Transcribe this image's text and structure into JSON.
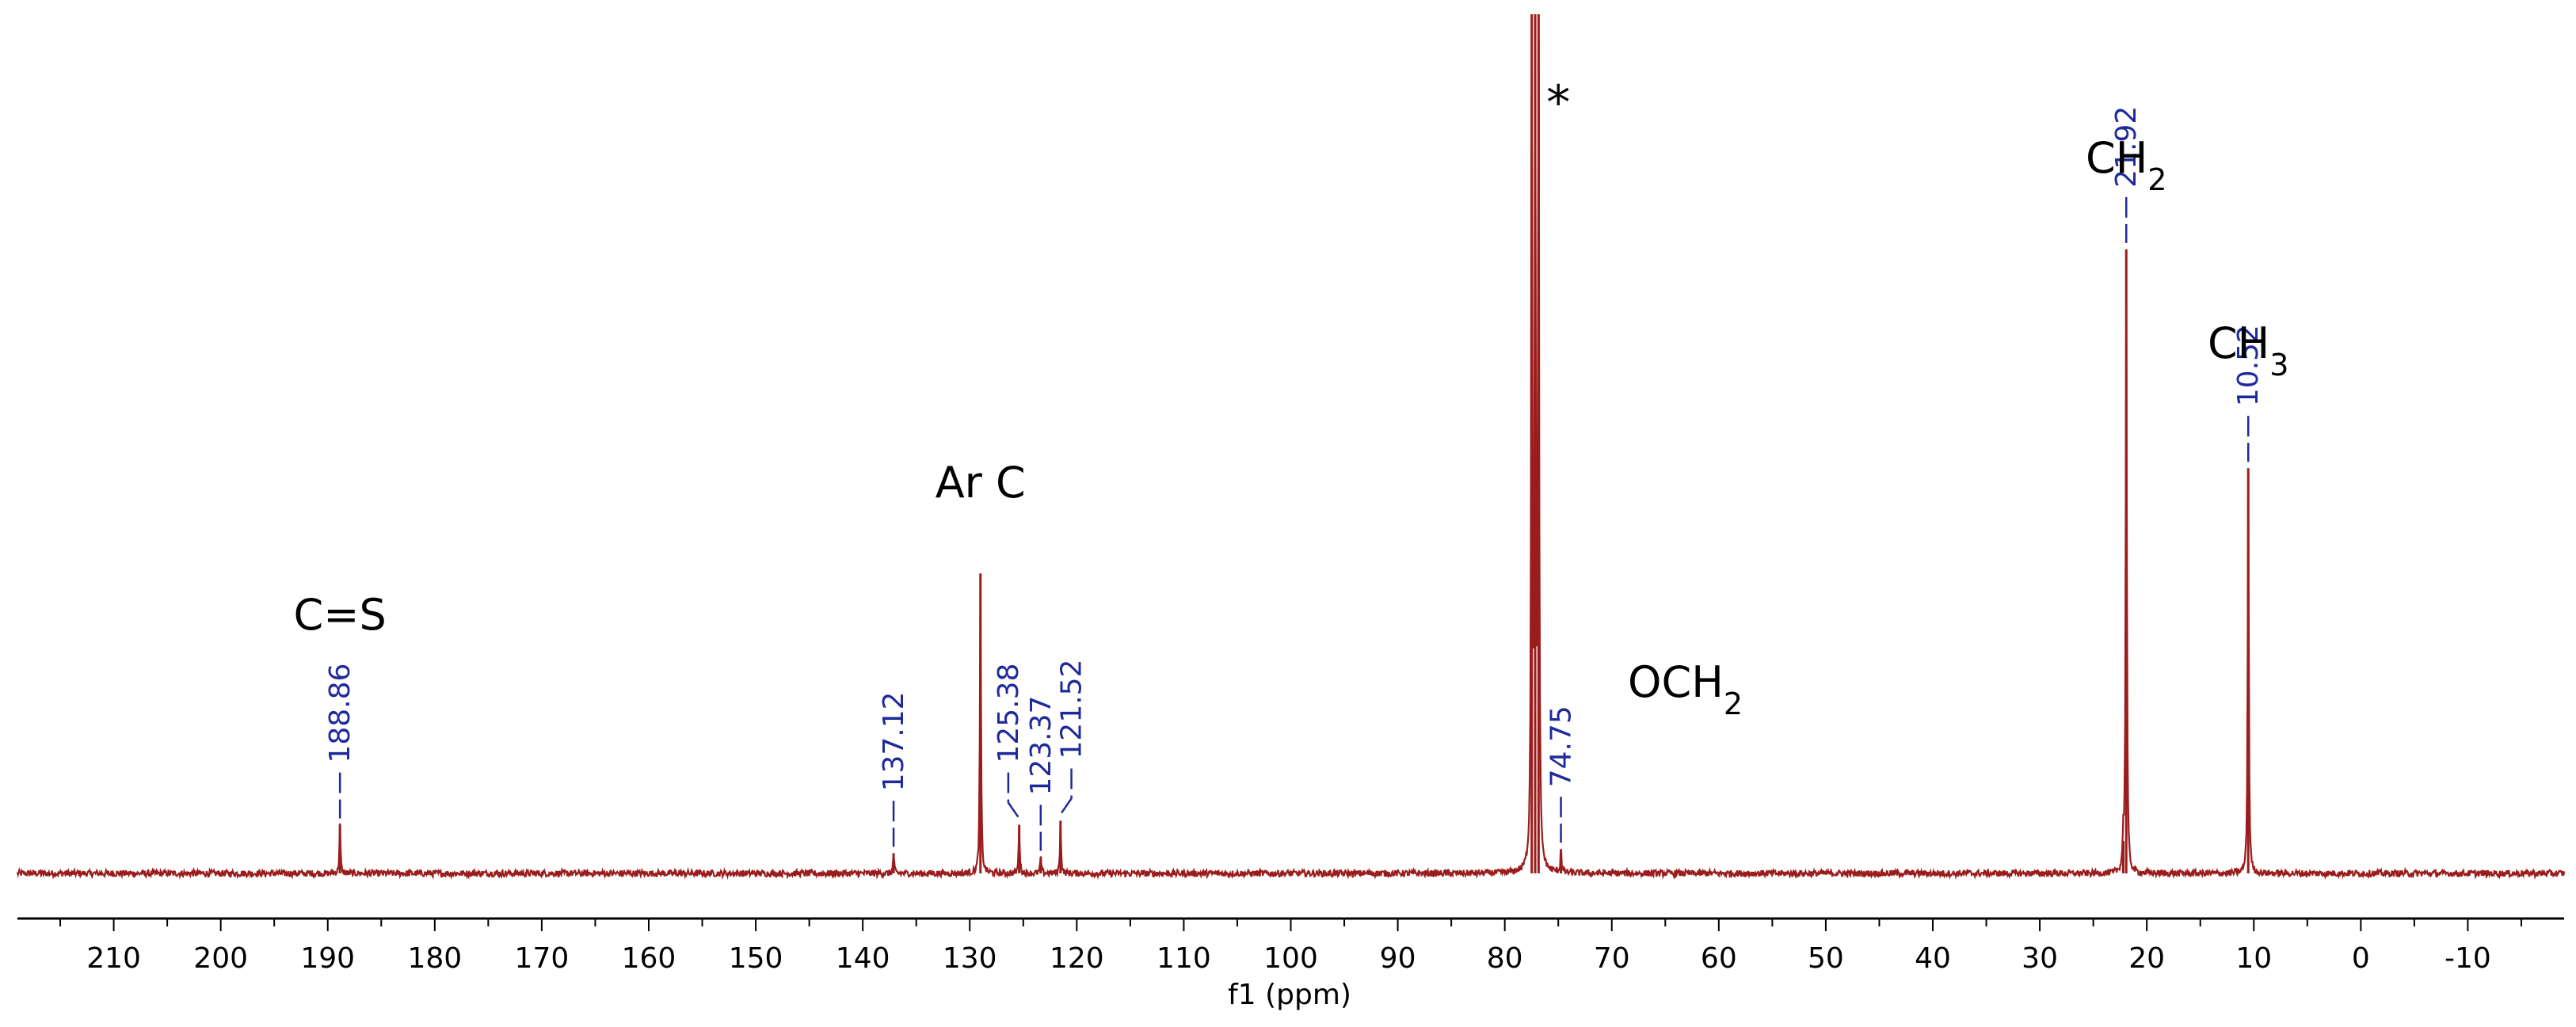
{
  "colors": {
    "spectrum": "#9b1c1c",
    "peak_label": "#1f2a9a",
    "axis": "#000000"
  },
  "chart_data": {
    "type": "line",
    "title": "",
    "xlabel": "f1 (ppm)",
    "ylabel": "",
    "xlim": [
      219,
      -19
    ],
    "x_reversed": true,
    "ylim": [
      0,
      1.06
    ],
    "grid": false,
    "x_ticks": [
      210,
      200,
      190,
      180,
      170,
      160,
      150,
      140,
      130,
      120,
      110,
      100,
      90,
      80,
      70,
      60,
      50,
      40,
      30,
      20,
      10,
      0,
      -10
    ],
    "x_tick_labels": [
      "210",
      "200",
      "190",
      "180",
      "170",
      "160",
      "150",
      "140",
      "130",
      "120",
      "110",
      "100",
      "90",
      "80",
      "70",
      "60",
      "50",
      "40",
      "30",
      "20",
      "10",
      "0",
      "-10"
    ],
    "peaks": [
      {
        "ppm": 188.86,
        "height": 0.06
      },
      {
        "ppm": 137.12,
        "height": 0.025
      },
      {
        "ppm": 129.0,
        "height": 0.37
      },
      {
        "ppm": 125.38,
        "height": 0.06
      },
      {
        "ppm": 123.37,
        "height": 0.02
      },
      {
        "ppm": 121.52,
        "height": 0.065
      },
      {
        "ppm": 77.48,
        "height": 1.06
      },
      {
        "ppm": 77.16,
        "height": 1.06
      },
      {
        "ppm": 76.84,
        "height": 1.06
      },
      {
        "ppm": 74.75,
        "height": 0.03
      },
      {
        "ppm": 22.2,
        "height": 0.04
      },
      {
        "ppm": 21.92,
        "height": 0.77
      },
      {
        "ppm": 10.52,
        "height": 0.5
      }
    ],
    "peak_labels": [
      {
        "text": "188.86",
        "ppm": 188.86,
        "target_ppm": 188.86
      },
      {
        "text": "137.12",
        "ppm": 137.12,
        "target_ppm": 137.12
      },
      {
        "text": "125.38",
        "ppm": 126.4,
        "target_ppm": 125.38
      },
      {
        "text": "123.37",
        "ppm": 123.37,
        "target_ppm": 123.37
      },
      {
        "text": "121.52",
        "ppm": 120.5,
        "target_ppm": 121.52
      },
      {
        "text": "74.75",
        "ppm": 74.75,
        "target_ppm": 74.75
      },
      {
        "text": "21.92",
        "ppm": 21.92,
        "target_ppm": 21.92
      },
      {
        "text": "10.52",
        "ppm": 10.52,
        "target_ppm": 10.52
      }
    ],
    "annotations": [
      {
        "kind": "group",
        "sub": "",
        "text": "C=S",
        "ppm": 188.86
      },
      {
        "kind": "group",
        "sub": "",
        "text": "Ar C",
        "ppm": 129.0
      },
      {
        "kind": "group",
        "sub": "2",
        "text": "OCH",
        "ppm": 68.5
      },
      {
        "kind": "group",
        "sub": "2",
        "text": "CH",
        "ppm": 21.92
      },
      {
        "kind": "group",
        "sub": "3",
        "text": "CH",
        "ppm": 10.52
      },
      {
        "kind": "star",
        "sub": "",
        "text": "*",
        "ppm": 75.0
      }
    ]
  }
}
